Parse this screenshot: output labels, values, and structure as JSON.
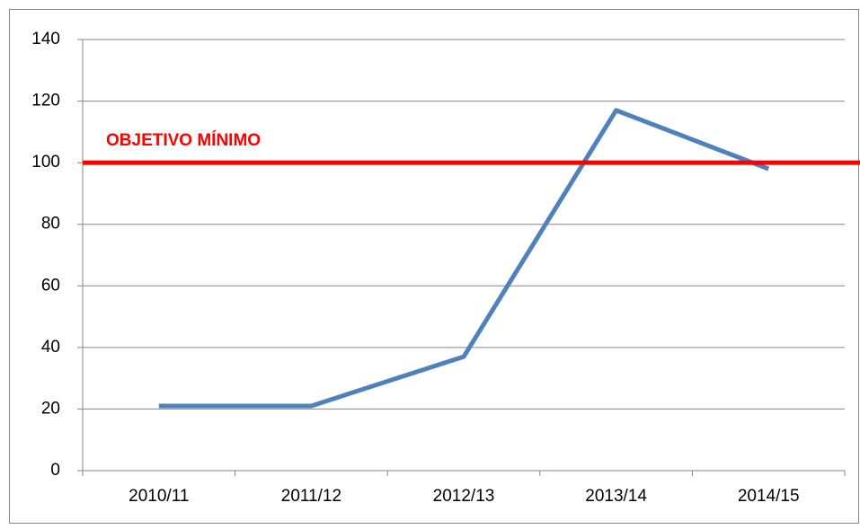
{
  "chart_data": {
    "type": "line",
    "categories": [
      "2010/11",
      "2011/12",
      "2012/13",
      "2013/14",
      "2014/15"
    ],
    "values": [
      21,
      21,
      37,
      117,
      98
    ],
    "color": "#4f81bd",
    "ylim": [
      0,
      140
    ],
    "yticks": [
      0,
      20,
      40,
      60,
      80,
      100,
      120,
      140
    ],
    "grid": true,
    "reference_line": {
      "value": 100,
      "label": "OBJETIVO MÍNIMO",
      "color": "#ff0000"
    }
  }
}
